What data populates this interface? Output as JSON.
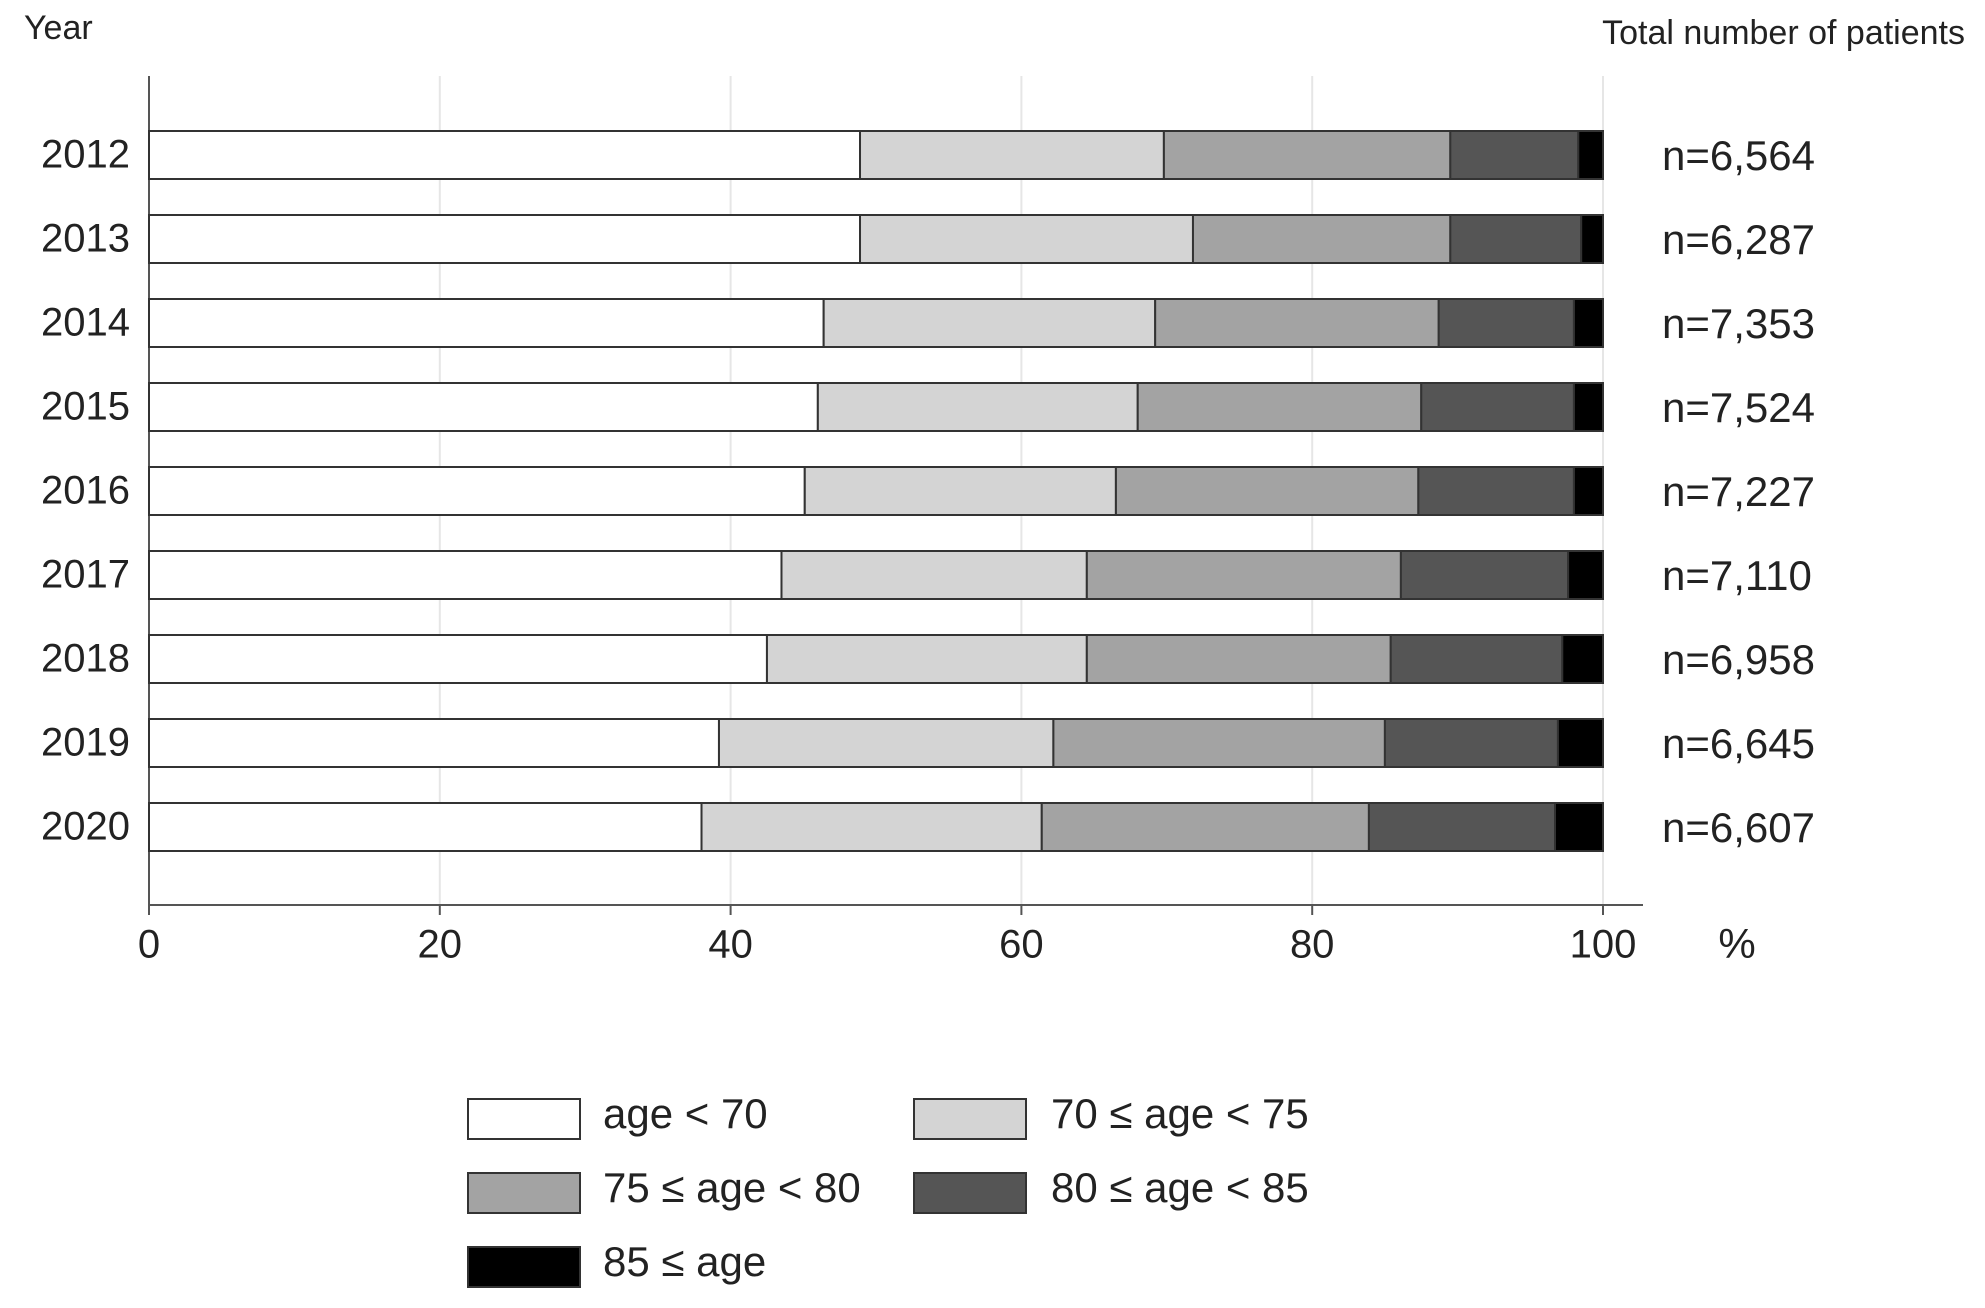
{
  "chart_data": {
    "type": "stacked-bar-horizontal",
    "y_label": "Year",
    "right_label": "Total number of patients",
    "x_unit": "%",
    "categories": [
      "2012",
      "2013",
      "2014",
      "2015",
      "2016",
      "2017",
      "2018",
      "2019",
      "2020"
    ],
    "totals": [
      "n=6,564",
      "n=6,287",
      "n=7,353",
      "n=7,524",
      "n=7,227",
      "n=7,110",
      "n=6,958",
      "n=6,645",
      "n=6,607"
    ],
    "series": [
      {
        "name": "age < 70",
        "color": "#ffffff",
        "values": [
          48.9,
          48.9,
          46.4,
          46.0,
          45.1,
          43.5,
          42.5,
          39.2,
          38.0
        ]
      },
      {
        "name": "70 ≤ age < 75",
        "color": "#d4d4d4",
        "values": [
          20.9,
          22.9,
          22.8,
          22.0,
          21.4,
          21.0,
          22.0,
          23.0,
          23.4
        ]
      },
      {
        "name": "75 ≤ age < 80",
        "color": "#a3a3a3",
        "values": [
          19.7,
          17.7,
          19.5,
          19.5,
          20.8,
          21.6,
          20.9,
          22.8,
          22.5
        ]
      },
      {
        "name": "80 ≤ age < 85",
        "color": "#555555",
        "values": [
          8.8,
          9.0,
          9.3,
          10.5,
          10.7,
          11.5,
          11.8,
          11.9,
          12.8
        ]
      },
      {
        "name": "85 ≤ age",
        "color": "#000000",
        "values": [
          1.7,
          1.5,
          2.0,
          2.0,
          2.0,
          2.4,
          2.8,
          3.1,
          3.3
        ]
      }
    ],
    "xlim": [
      0,
      100
    ],
    "xticks": [
      0,
      20,
      40,
      60,
      80,
      100
    ],
    "grid": true
  }
}
